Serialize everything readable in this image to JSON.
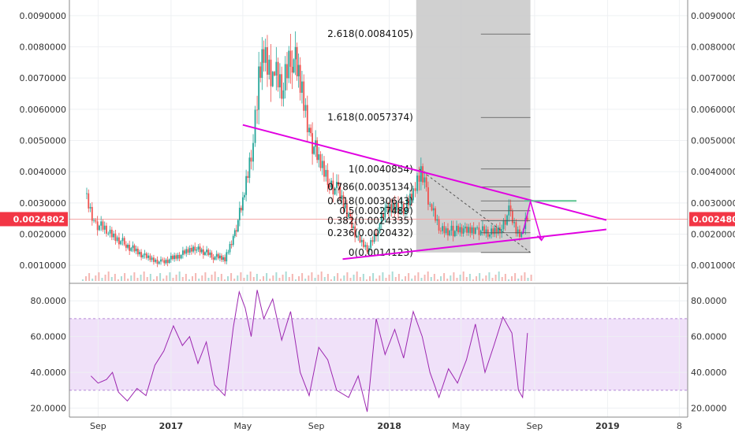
{
  "chart_data": [
    {
      "type": "candlestick",
      "panel": "price",
      "ylim": [
        0.0005,
        0.0095
      ],
      "yticks": [
        "0.0010000",
        "0.0020000",
        "0.0030000",
        "0.0040000",
        "0.0050000",
        "0.0060000",
        "0.0070000",
        "0.0080000",
        "0.0090000"
      ],
      "ytick_values": [
        0.001,
        0.002,
        0.003,
        0.004,
        0.005,
        0.006,
        0.007,
        0.008,
        0.009
      ],
      "last_price_label": "0.0024802",
      "last_price": 0.0024802,
      "x_labels": [
        "Sep",
        "2017",
        "May",
        "Sep",
        "2018",
        "May",
        "Sep",
        "2019",
        "8"
      ],
      "x_label_dates": [
        "2016-09-01",
        "2017-01-01",
        "2017-05-01",
        "2017-09-01",
        "2018-01-01",
        "2018-05-01",
        "2018-09-01",
        "2019-01-01",
        "2019-05-01"
      ],
      "xlim": [
        "2016-07-15",
        "2019-05-15"
      ],
      "price_series": [
        [
          "2016-08-10",
          0.0033
        ],
        [
          "2016-08-25",
          0.0024
        ],
        [
          "2016-09-15",
          0.0021
        ],
        [
          "2016-10-15",
          0.0017
        ],
        [
          "2016-11-15",
          0.0013
        ],
        [
          "2016-12-15",
          0.0011
        ],
        [
          "2017-01-15",
          0.0013
        ],
        [
          "2017-02-10",
          0.0016
        ],
        [
          "2017-03-10",
          0.0013
        ],
        [
          "2017-04-01",
          0.0012
        ],
        [
          "2017-04-15",
          0.0019
        ],
        [
          "2017-05-01",
          0.003
        ],
        [
          "2017-05-15",
          0.0046
        ],
        [
          "2017-05-25",
          0.0065
        ],
        [
          "2017-06-05",
          0.0078
        ],
        [
          "2017-06-20",
          0.0072
        ],
        [
          "2017-07-05",
          0.0066
        ],
        [
          "2017-07-20",
          0.008
        ],
        [
          "2017-08-05",
          0.0068
        ],
        [
          "2017-08-20",
          0.0053
        ],
        [
          "2017-09-05",
          0.0043
        ],
        [
          "2017-09-20",
          0.0038
        ],
        [
          "2017-10-05",
          0.0034
        ],
        [
          "2017-10-25",
          0.0026
        ],
        [
          "2017-11-10",
          0.0018
        ],
        [
          "2017-11-25",
          0.0015
        ],
        [
          "2017-12-10",
          0.0021
        ],
        [
          "2017-12-25",
          0.0027
        ],
        [
          "2018-01-10",
          0.003
        ],
        [
          "2018-01-25",
          0.0027
        ],
        [
          "2018-02-10",
          0.0034
        ],
        [
          "2018-02-20",
          0.004
        ],
        [
          "2018-03-01",
          0.0036
        ],
        [
          "2018-03-10",
          0.0029
        ],
        [
          "2018-03-25",
          0.0022
        ],
        [
          "2018-04-15",
          0.0021
        ],
        [
          "2018-05-05",
          0.0021
        ],
        [
          "2018-05-25",
          0.0022
        ],
        [
          "2018-06-15",
          0.002
        ],
        [
          "2018-07-05",
          0.0022
        ],
        [
          "2018-07-20",
          0.0027
        ],
        [
          "2018-08-01",
          0.0021
        ],
        [
          "2018-08-10",
          0.002
        ],
        [
          "2018-08-20",
          0.0025
        ]
      ],
      "fibonacci": {
        "levels": [
          {
            "label": "2.618(0.0084105)",
            "value": 0.0084105
          },
          {
            "label": "1.618(0.0057374)",
            "value": 0.0057374
          },
          {
            "label": "1(0.0040854)",
            "value": 0.0040854
          },
          {
            "label": "0.786(0.0035134)",
            "value": 0.0035134
          },
          {
            "label": "0.618(0.0030643)",
            "value": 0.0030643
          },
          {
            "label": "0.5(0.0027489)",
            "value": 0.0027489
          },
          {
            "label": "0.382(0.0024335)",
            "value": 0.0024335
          },
          {
            "label": "0.236(0.0020432)",
            "value": 0.0020432
          },
          {
            "label": "0(0.0014123)",
            "value": 0.0014123
          }
        ],
        "zone_from": "2018-02-15",
        "zone_to": "2018-08-25"
      },
      "trendlines": [
        {
          "from": [
            "2017-05-01",
            0.0055
          ],
          "to": [
            "2018-12-30",
            0.00245
          ]
        },
        {
          "from": [
            "2017-10-15",
            0.0012
          ],
          "to": [
            "2018-12-30",
            0.00215
          ]
        }
      ],
      "horizontal_level": {
        "from": "2018-08-15",
        "to": "2018-11-10",
        "value": 0.0030643
      },
      "colors": {
        "up": "#26a69a",
        "down": "#ef5350",
        "trend": "#e100e1",
        "last_price": "#f23645"
      }
    },
    {
      "type": "line",
      "panel": "rsi",
      "ylim": [
        15,
        88
      ],
      "yticks": [
        "20.0000",
        "40.0000",
        "60.0000",
        "80.0000"
      ],
      "ytick_values": [
        20,
        40,
        60,
        80
      ],
      "band": [
        30,
        70
      ],
      "rsi_series": [
        [
          "2016-08-20",
          38
        ],
        [
          "2016-09-01",
          34
        ],
        [
          "2016-09-15",
          36
        ],
        [
          "2016-09-25",
          40
        ],
        [
          "2016-10-05",
          29
        ],
        [
          "2016-10-20",
          24
        ],
        [
          "2016-11-05",
          31
        ],
        [
          "2016-11-20",
          27
        ],
        [
          "2016-12-05",
          44
        ],
        [
          "2016-12-20",
          52
        ],
        [
          "2017-01-05",
          66
        ],
        [
          "2017-01-20",
          55
        ],
        [
          "2017-02-01",
          60
        ],
        [
          "2017-02-15",
          45
        ],
        [
          "2017-03-01",
          57
        ],
        [
          "2017-03-15",
          33
        ],
        [
          "2017-04-01",
          27
        ],
        [
          "2017-04-15",
          65
        ],
        [
          "2017-04-25",
          85
        ],
        [
          "2017-05-05",
          76
        ],
        [
          "2017-05-15",
          60
        ],
        [
          "2017-05-25",
          86
        ],
        [
          "2017-06-05",
          70
        ],
        [
          "2017-06-20",
          81
        ],
        [
          "2017-07-05",
          58
        ],
        [
          "2017-07-20",
          74
        ],
        [
          "2017-08-05",
          40
        ],
        [
          "2017-08-20",
          27
        ],
        [
          "2017-09-05",
          54
        ],
        [
          "2017-09-20",
          47
        ],
        [
          "2017-10-05",
          30
        ],
        [
          "2017-10-25",
          26
        ],
        [
          "2017-11-10",
          38
        ],
        [
          "2017-11-25",
          18
        ],
        [
          "2017-12-10",
          70
        ],
        [
          "2017-12-25",
          50
        ],
        [
          "2018-01-10",
          64
        ],
        [
          "2018-01-25",
          48
        ],
        [
          "2018-02-10",
          74
        ],
        [
          "2018-02-25",
          60
        ],
        [
          "2018-03-10",
          40
        ],
        [
          "2018-03-25",
          26
        ],
        [
          "2018-04-10",
          42
        ],
        [
          "2018-04-25",
          34
        ],
        [
          "2018-05-10",
          47
        ],
        [
          "2018-05-25",
          67
        ],
        [
          "2018-06-10",
          40
        ],
        [
          "2018-06-25",
          55
        ],
        [
          "2018-07-10",
          71
        ],
        [
          "2018-07-25",
          62
        ],
        [
          "2018-08-05",
          30
        ],
        [
          "2018-08-12",
          26
        ],
        [
          "2018-08-20",
          62
        ]
      ],
      "color": "#9c27b0",
      "band_color": "#e9d4f7"
    }
  ]
}
